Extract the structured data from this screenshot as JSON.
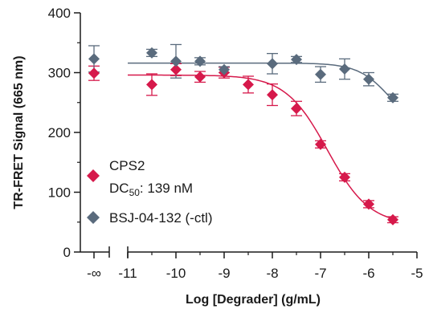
{
  "chart_data": {
    "type": "scatter",
    "title": "",
    "xlabel": "Log [Degrader] (g/mL)",
    "ylabel": "TR-FRET Signal (665 nm)",
    "ylim": [
      0,
      400
    ],
    "xlim": [
      -11,
      -5
    ],
    "x_break_label": "-∞",
    "x_ticks": [
      "-11",
      "-10",
      "-9",
      "-8",
      "-7",
      "-6",
      "-5"
    ],
    "y_ticks": [
      "0",
      "100",
      "200",
      "300",
      "400"
    ],
    "grid": false,
    "legend_position": "bottom-left",
    "series": [
      {
        "name": "CPS2",
        "label_line1": "CPS2",
        "label_line2_prefix": "DC",
        "label_line2_sub": "50",
        "label_line2_suffix": ": 139 nM",
        "color": "#d6194b",
        "marker": "diamond",
        "zero_dose": {
          "y": 299,
          "err": 12
        },
        "points": [
          {
            "x": -10.5,
            "y": 280,
            "err": 18
          },
          {
            "x": -10.0,
            "y": 305,
            "err": 10
          },
          {
            "x": -9.5,
            "y": 293,
            "err": 9
          },
          {
            "x": -9.0,
            "y": 300,
            "err": 9
          },
          {
            "x": -8.5,
            "y": 280,
            "err": 14
          },
          {
            "x": -8.0,
            "y": 263,
            "err": 18
          },
          {
            "x": -7.5,
            "y": 240,
            "err": 12
          },
          {
            "x": -7.0,
            "y": 180,
            "err": 6
          },
          {
            "x": -6.5,
            "y": 125,
            "err": 6
          },
          {
            "x": -6.0,
            "y": 80,
            "err": 6
          },
          {
            "x": -5.5,
            "y": 54,
            "err": 5
          }
        ],
        "fit": {
          "top": 296,
          "bottom": 45,
          "log_dc50": -6.857,
          "hill": 1.0
        }
      },
      {
        "name": "BSJ-04-132 (-ctl)",
        "label_line1": "BSJ-04-132 (-ctl)",
        "color": "#5a6b7d",
        "marker": "diamond",
        "zero_dose": {
          "y": 323,
          "err": 22
        },
        "points": [
          {
            "x": -10.5,
            "y": 333,
            "err": 6
          },
          {
            "x": -10.0,
            "y": 319,
            "err": 28
          },
          {
            "x": -9.5,
            "y": 319,
            "err": 6
          },
          {
            "x": -9.0,
            "y": 305,
            "err": 5
          },
          {
            "x": -8.0,
            "y": 315,
            "err": 17
          },
          {
            "x": -7.5,
            "y": 322,
            "err": 5
          },
          {
            "x": -7.0,
            "y": 297,
            "err": 13
          },
          {
            "x": -6.5,
            "y": 306,
            "err": 17
          },
          {
            "x": -6.0,
            "y": 289,
            "err": 11
          },
          {
            "x": -5.5,
            "y": 258,
            "err": 6
          }
        ],
        "fit": {
          "top": 316,
          "bottom": 200,
          "log_dc50": -5.55,
          "hill": 1.3
        }
      }
    ]
  }
}
